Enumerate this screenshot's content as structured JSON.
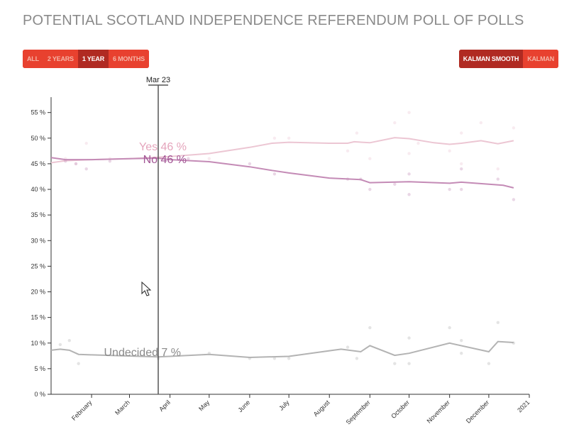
{
  "title": "POTENTIAL SCOTLAND INDEPENDENCE REFERENDUM POLL OF POLLS",
  "range_buttons": [
    {
      "label": "ALL",
      "active": false
    },
    {
      "label": "2 YEARS",
      "active": false
    },
    {
      "label": "1 YEAR",
      "active": true
    },
    {
      "label": "6 MONTHS",
      "active": false
    }
  ],
  "smoothing_buttons": [
    {
      "label": "KALMAN SMOOTH",
      "active": true
    },
    {
      "label": "KALMAN",
      "active": false
    }
  ],
  "colors": {
    "yes": "#ecc6d3",
    "no": "#c48bb6",
    "undecided": "#b3b3b3",
    "yes_label": "#e5a5bc",
    "no_label": "#a25595",
    "undecided_label": "#8a8a8a",
    "accent": "#e8412f",
    "accent_dark": "#b02a22"
  },
  "chart_data": {
    "type": "line",
    "xlim": [
      "2020-01-01",
      "2021-01-01"
    ],
    "ylim": [
      0,
      58
    ],
    "yticks": [
      0,
      5,
      10,
      15,
      20,
      25,
      30,
      35,
      40,
      45,
      50,
      55
    ],
    "ytick_labels": [
      "0 %",
      "5 %",
      "10 %",
      "15 %",
      "20 %",
      "25 %",
      "30 %",
      "35 %",
      "40 %",
      "45 %",
      "50 %",
      "55 %"
    ],
    "xticks": [
      "2020-02-01",
      "2020-03-01",
      "2020-04-01",
      "2020-05-01",
      "2020-06-01",
      "2020-07-01",
      "2020-08-01",
      "2020-09-01",
      "2020-10-01",
      "2020-11-01",
      "2020-12-01",
      "2021-01-01"
    ],
    "xtick_labels": [
      "February",
      "March",
      "April",
      "May",
      "June",
      "July",
      "August",
      "September",
      "October",
      "November",
      "December",
      "2021"
    ],
    "cursor": {
      "date": "2020-03-23",
      "label": "Mar 23"
    },
    "series_labels": [
      {
        "name": "Yes",
        "text": "Yes 46 %"
      },
      {
        "name": "No",
        "text": "No 46 %"
      },
      {
        "name": "Undecided",
        "text": "Undecided 7 %"
      }
    ],
    "series": [
      {
        "name": "Yes",
        "line": [
          [
            "2020-01-01",
            45.2
          ],
          [
            "2020-01-12",
            45.6
          ],
          [
            "2020-02-01",
            45.8
          ],
          [
            "2020-03-01",
            46.0
          ],
          [
            "2020-04-01",
            46.4
          ],
          [
            "2020-05-01",
            47.0
          ],
          [
            "2020-06-01",
            48.2
          ],
          [
            "2020-06-18",
            49.0
          ],
          [
            "2020-07-01",
            49.2
          ],
          [
            "2020-08-01",
            49.0
          ],
          [
            "2020-08-15",
            49.0
          ],
          [
            "2020-08-20",
            49.3
          ],
          [
            "2020-09-01",
            49.1
          ],
          [
            "2020-09-20",
            50.1
          ],
          [
            "2020-10-01",
            49.9
          ],
          [
            "2020-10-20",
            49.1
          ],
          [
            "2020-11-01",
            48.8
          ],
          [
            "2020-11-10",
            49.0
          ],
          [
            "2020-11-25",
            49.5
          ],
          [
            "2020-12-08",
            48.9
          ],
          [
            "2020-12-20",
            49.5
          ]
        ],
        "points": [
          [
            "2020-01-12",
            46.0
          ],
          [
            "2020-01-20",
            45.0
          ],
          [
            "2020-01-28",
            49.0
          ],
          [
            "2020-02-15",
            46.0
          ],
          [
            "2020-05-01",
            46.0
          ],
          [
            "2020-06-20",
            50.0
          ],
          [
            "2020-07-01",
            50.0
          ],
          [
            "2020-08-15",
            47.5
          ],
          [
            "2020-08-22",
            51.0
          ],
          [
            "2020-09-01",
            46.0
          ],
          [
            "2020-09-20",
            53.0
          ],
          [
            "2020-10-01",
            55.0
          ],
          [
            "2020-10-08",
            49.0
          ],
          [
            "2020-10-01",
            47.0
          ],
          [
            "2020-11-01",
            47.5
          ],
          [
            "2020-11-10",
            51.0
          ],
          [
            "2020-11-10",
            45.0
          ],
          [
            "2020-11-25",
            53.0
          ],
          [
            "2020-12-08",
            44.0
          ],
          [
            "2020-12-20",
            52.0
          ]
        ]
      },
      {
        "name": "No",
        "line": [
          [
            "2020-01-01",
            46.2
          ],
          [
            "2020-01-12",
            45.8
          ],
          [
            "2020-02-01",
            45.8
          ],
          [
            "2020-03-01",
            46.0
          ],
          [
            "2020-03-23",
            46.1
          ],
          [
            "2020-04-01",
            45.8
          ],
          [
            "2020-05-01",
            45.4
          ],
          [
            "2020-06-01",
            44.4
          ],
          [
            "2020-06-18",
            43.7
          ],
          [
            "2020-07-01",
            43.2
          ],
          [
            "2020-08-01",
            42.2
          ],
          [
            "2020-08-25",
            41.9
          ],
          [
            "2020-09-01",
            41.3
          ],
          [
            "2020-10-01",
            41.5
          ],
          [
            "2020-11-01",
            41.2
          ],
          [
            "2020-11-10",
            41.4
          ],
          [
            "2020-12-01",
            41.0
          ],
          [
            "2020-12-12",
            40.8
          ],
          [
            "2020-12-20",
            40.3
          ]
        ],
        "points": [
          [
            "2020-01-12",
            45.5
          ],
          [
            "2020-01-20",
            45.0
          ],
          [
            "2020-01-28",
            44.0
          ],
          [
            "2020-02-15",
            45.5
          ],
          [
            "2020-04-15",
            46.0
          ],
          [
            "2020-06-01",
            45.0
          ],
          [
            "2020-06-20",
            43.0
          ],
          [
            "2020-08-15",
            42.0
          ],
          [
            "2020-08-25",
            42.0
          ],
          [
            "2020-09-01",
            40.0
          ],
          [
            "2020-09-20",
            41.0
          ],
          [
            "2020-10-01",
            43.0
          ],
          [
            "2020-10-01",
            39.0
          ],
          [
            "2020-11-01",
            40.0
          ],
          [
            "2020-11-10",
            44.0
          ],
          [
            "2020-11-10",
            40.0
          ],
          [
            "2020-12-08",
            42.0
          ],
          [
            "2020-12-20",
            38.0
          ]
        ]
      },
      {
        "name": "Undecided",
        "line": [
          [
            "2020-01-01",
            8.6
          ],
          [
            "2020-01-08",
            8.8
          ],
          [
            "2020-01-15",
            8.6
          ],
          [
            "2020-01-22",
            7.8
          ],
          [
            "2020-02-01",
            7.7
          ],
          [
            "2020-03-23",
            7.3
          ],
          [
            "2020-05-01",
            7.8
          ],
          [
            "2020-06-01",
            7.2
          ],
          [
            "2020-07-01",
            7.4
          ],
          [
            "2020-08-01",
            8.5
          ],
          [
            "2020-08-10",
            8.8
          ],
          [
            "2020-08-25",
            8.3
          ],
          [
            "2020-09-01",
            9.5
          ],
          [
            "2020-09-20",
            7.6
          ],
          [
            "2020-10-01",
            8.0
          ],
          [
            "2020-11-01",
            10.0
          ],
          [
            "2020-12-01",
            8.3
          ],
          [
            "2020-12-08",
            10.3
          ],
          [
            "2020-12-20",
            10.1
          ]
        ],
        "points": [
          [
            "2020-01-08",
            9.7
          ],
          [
            "2020-01-15",
            10.5
          ],
          [
            "2020-01-22",
            6.0
          ],
          [
            "2020-03-23",
            7.0
          ],
          [
            "2020-05-01",
            8.0
          ],
          [
            "2020-06-01",
            7.0
          ],
          [
            "2020-06-20",
            7.0
          ],
          [
            "2020-07-01",
            7.0
          ],
          [
            "2020-08-15",
            9.2
          ],
          [
            "2020-08-22",
            7.0
          ],
          [
            "2020-09-01",
            13.0
          ],
          [
            "2020-09-20",
            6.0
          ],
          [
            "2020-10-01",
            11.0
          ],
          [
            "2020-10-01",
            6.0
          ],
          [
            "2020-11-01",
            13.0
          ],
          [
            "2020-11-10",
            10.5
          ],
          [
            "2020-11-10",
            8.0
          ],
          [
            "2020-12-01",
            6.0
          ],
          [
            "2020-12-08",
            14.0
          ],
          [
            "2020-12-20",
            10.0
          ]
        ]
      }
    ]
  }
}
